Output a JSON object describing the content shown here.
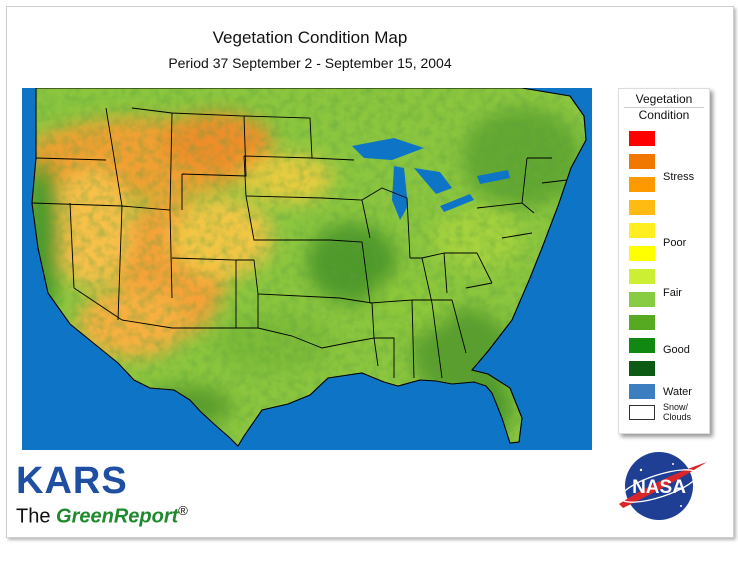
{
  "header": {
    "title": "Vegetation Condition Map",
    "subtitle": "Period 37  September 2 - September 15, 2004"
  },
  "legend": {
    "title_line1": "Vegetation",
    "title_line2": "Condition",
    "labels": {
      "stress": "Stress",
      "poor": "Poor",
      "fair": "Fair",
      "good": "Good",
      "water": "Water",
      "snow1": "Snow/",
      "snow2": "Clouds"
    },
    "colors": [
      "#ff0000",
      "#f07800",
      "#ff9900",
      "#ffbb11",
      "#ffee22",
      "#ffff00",
      "#ccee33",
      "#88cc44",
      "#55aa22",
      "#118811",
      "#0d5a14",
      "#3d7ec0",
      "#ffffff"
    ]
  },
  "branding": {
    "kars": "KARS",
    "the": "The ",
    "greenreport": "GreenReport",
    "registered": "®",
    "nasa": "NASA"
  },
  "map": {
    "ocean_color": "#0e74c6",
    "land_base": "#88c43c"
  }
}
